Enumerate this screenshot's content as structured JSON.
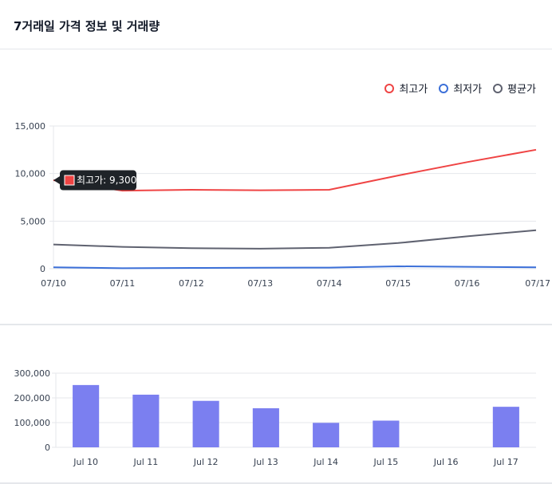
{
  "title": "7거래일 가격 정보 및 거래량",
  "chart_data": [
    {
      "type": "line",
      "categories": [
        "07/10",
        "07/11",
        "07/12",
        "07/13",
        "07/14",
        "07/15",
        "07/16",
        "07/17"
      ],
      "series": [
        {
          "name": "최고가",
          "color": "#ef4444",
          "values": [
            9300,
            8200,
            8300,
            8250,
            8300,
            9800,
            11200,
            12500
          ]
        },
        {
          "name": "최저가",
          "color": "#3b6fd8",
          "values": [
            150,
            50,
            80,
            100,
            120,
            250,
            200,
            150
          ]
        },
        {
          "name": "평균가",
          "color": "#5f6270",
          "values": [
            2550,
            2300,
            2150,
            2100,
            2200,
            2700,
            3400,
            4050
          ]
        }
      ],
      "ylim": [
        0,
        15000
      ],
      "yticks": [
        "0",
        "5,000",
        "10,000",
        "15,000"
      ],
      "legend": "top-right",
      "grid": true,
      "tooltip": {
        "series": "최고가",
        "category": "07/10",
        "text": "최고가: 9,300"
      }
    },
    {
      "type": "bar",
      "categories": [
        "Jul 10",
        "Jul 11",
        "Jul 12",
        "Jul 13",
        "Jul 14",
        "Jul 15",
        "Jul 16",
        "Jul 17"
      ],
      "values": [
        252000,
        213000,
        188000,
        158000,
        99000,
        108000,
        0,
        164000
      ],
      "color": "#7b7ff0",
      "ylim": [
        0,
        300000
      ],
      "yticks": [
        "0",
        "100,000",
        "200,000",
        "300,000"
      ],
      "grid": true
    }
  ]
}
